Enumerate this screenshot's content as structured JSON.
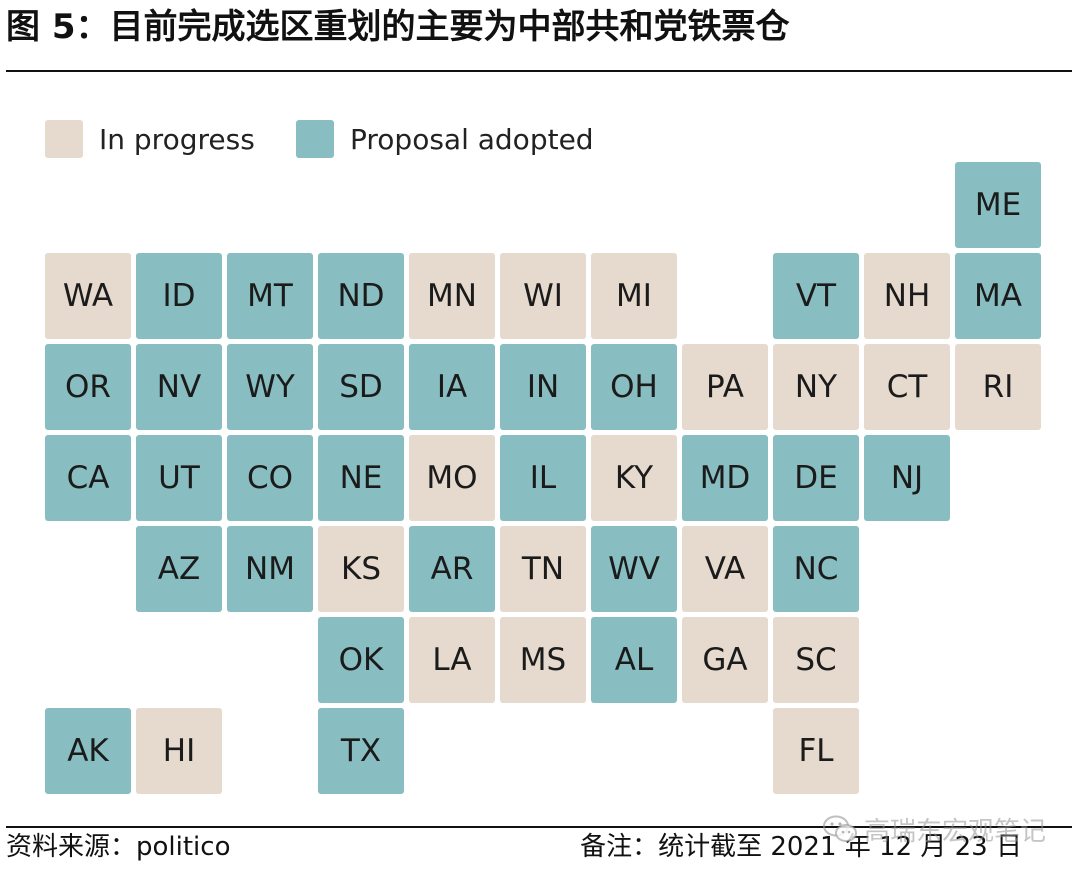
{
  "header": {
    "title": "图 5：目前完成选区重划的主要为中部共和党铁票仓"
  },
  "colors": {
    "in_progress": "#e6d9cd",
    "adopted": "#88bec1"
  },
  "legend": [
    {
      "label": "In progress",
      "status": "in_progress"
    },
    {
      "label": "Proposal adopted",
      "status": "adopted"
    }
  ],
  "states": [
    {
      "code": "ME",
      "status": "adopted",
      "row": 0,
      "col": 10
    },
    {
      "code": "WA",
      "status": "in_progress",
      "row": 1,
      "col": 0
    },
    {
      "code": "ID",
      "status": "adopted",
      "row": 1,
      "col": 1
    },
    {
      "code": "MT",
      "status": "adopted",
      "row": 1,
      "col": 2
    },
    {
      "code": "ND",
      "status": "adopted",
      "row": 1,
      "col": 3
    },
    {
      "code": "MN",
      "status": "in_progress",
      "row": 1,
      "col": 4
    },
    {
      "code": "WI",
      "status": "in_progress",
      "row": 1,
      "col": 5
    },
    {
      "code": "MI",
      "status": "in_progress",
      "row": 1,
      "col": 6
    },
    {
      "code": "VT",
      "status": "adopted",
      "row": 1,
      "col": 8
    },
    {
      "code": "NH",
      "status": "in_progress",
      "row": 1,
      "col": 9
    },
    {
      "code": "MA",
      "status": "adopted",
      "row": 1,
      "col": 10
    },
    {
      "code": "OR",
      "status": "adopted",
      "row": 2,
      "col": 0
    },
    {
      "code": "NV",
      "status": "adopted",
      "row": 2,
      "col": 1
    },
    {
      "code": "WY",
      "status": "adopted",
      "row": 2,
      "col": 2
    },
    {
      "code": "SD",
      "status": "adopted",
      "row": 2,
      "col": 3
    },
    {
      "code": "IA",
      "status": "adopted",
      "row": 2,
      "col": 4
    },
    {
      "code": "IN",
      "status": "adopted",
      "row": 2,
      "col": 5
    },
    {
      "code": "OH",
      "status": "adopted",
      "row": 2,
      "col": 6
    },
    {
      "code": "PA",
      "status": "in_progress",
      "row": 2,
      "col": 7
    },
    {
      "code": "NY",
      "status": "in_progress",
      "row": 2,
      "col": 8
    },
    {
      "code": "CT",
      "status": "in_progress",
      "row": 2,
      "col": 9
    },
    {
      "code": "RI",
      "status": "in_progress",
      "row": 2,
      "col": 10
    },
    {
      "code": "CA",
      "status": "adopted",
      "row": 3,
      "col": 0
    },
    {
      "code": "UT",
      "status": "adopted",
      "row": 3,
      "col": 1
    },
    {
      "code": "CO",
      "status": "adopted",
      "row": 3,
      "col": 2
    },
    {
      "code": "NE",
      "status": "adopted",
      "row": 3,
      "col": 3
    },
    {
      "code": "MO",
      "status": "in_progress",
      "row": 3,
      "col": 4
    },
    {
      "code": "IL",
      "status": "adopted",
      "row": 3,
      "col": 5
    },
    {
      "code": "KY",
      "status": "in_progress",
      "row": 3,
      "col": 6
    },
    {
      "code": "MD",
      "status": "adopted",
      "row": 3,
      "col": 7
    },
    {
      "code": "DE",
      "status": "adopted",
      "row": 3,
      "col": 8
    },
    {
      "code": "NJ",
      "status": "adopted",
      "row": 3,
      "col": 9
    },
    {
      "code": "AZ",
      "status": "adopted",
      "row": 4,
      "col": 1
    },
    {
      "code": "NM",
      "status": "adopted",
      "row": 4,
      "col": 2
    },
    {
      "code": "KS",
      "status": "in_progress",
      "row": 4,
      "col": 3
    },
    {
      "code": "AR",
      "status": "adopted",
      "row": 4,
      "col": 4
    },
    {
      "code": "TN",
      "status": "in_progress",
      "row": 4,
      "col": 5
    },
    {
      "code": "WV",
      "status": "adopted",
      "row": 4,
      "col": 6
    },
    {
      "code": "VA",
      "status": "in_progress",
      "row": 4,
      "col": 7
    },
    {
      "code": "NC",
      "status": "adopted",
      "row": 4,
      "col": 8
    },
    {
      "code": "OK",
      "status": "adopted",
      "row": 5,
      "col": 3
    },
    {
      "code": "LA",
      "status": "in_progress",
      "row": 5,
      "col": 4
    },
    {
      "code": "MS",
      "status": "in_progress",
      "row": 5,
      "col": 5
    },
    {
      "code": "AL",
      "status": "adopted",
      "row": 5,
      "col": 6
    },
    {
      "code": "GA",
      "status": "in_progress",
      "row": 5,
      "col": 7
    },
    {
      "code": "SC",
      "status": "in_progress",
      "row": 5,
      "col": 8
    },
    {
      "code": "AK",
      "status": "adopted",
      "row": 6,
      "col": 0
    },
    {
      "code": "HI",
      "status": "in_progress",
      "row": 6,
      "col": 1
    },
    {
      "code": "TX",
      "status": "adopted",
      "row": 6,
      "col": 3
    },
    {
      "code": "FL",
      "status": "in_progress",
      "row": 6,
      "col": 8
    }
  ],
  "footer": {
    "source": "资料来源：politico",
    "note": "备注：统计截至 2021 年 12 月 23 日"
  },
  "watermark": {
    "text": "高瑞东宏观笔记",
    "icon": "wechat-icon"
  }
}
